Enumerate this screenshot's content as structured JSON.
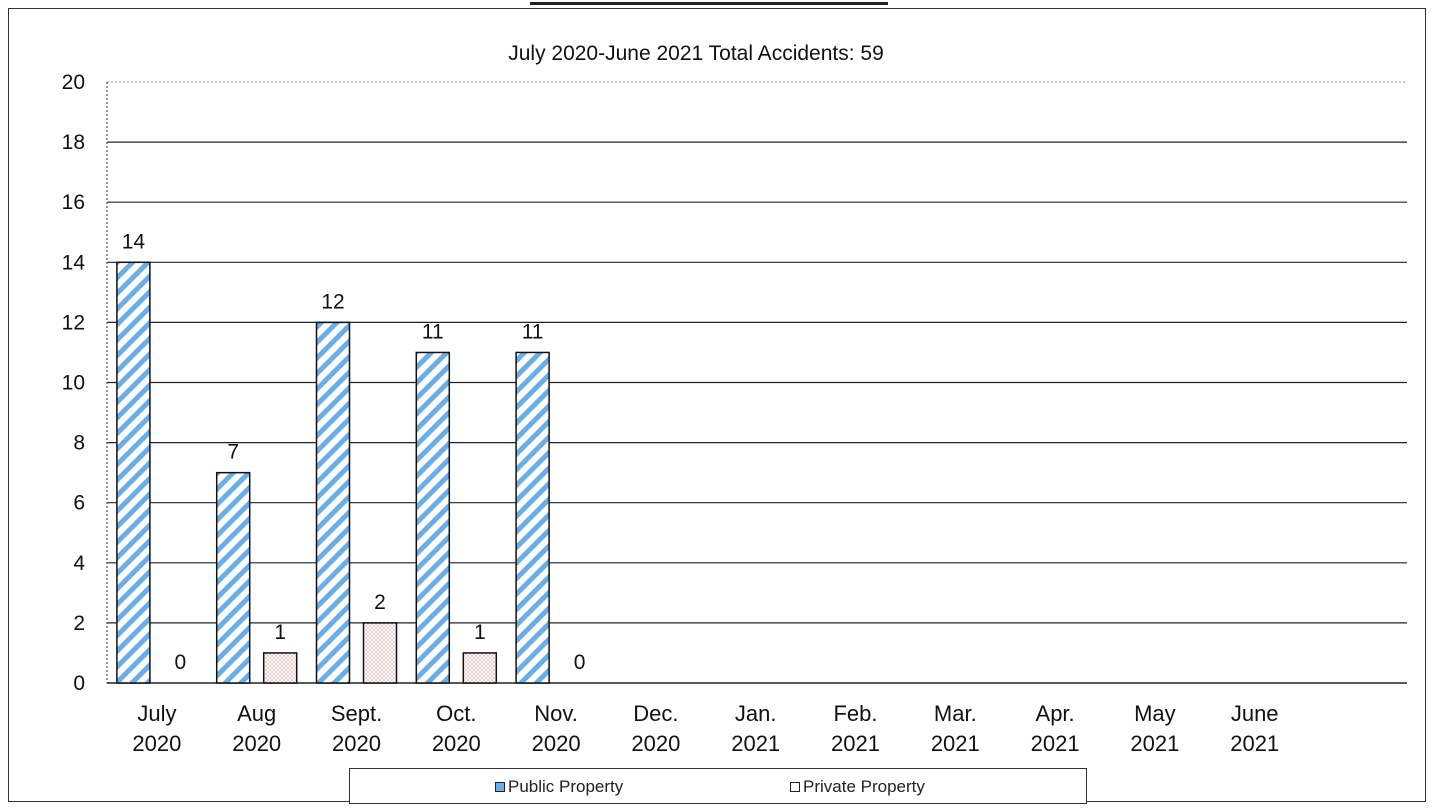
{
  "chart_data": {
    "type": "bar",
    "title": "July 2020-June 2021 Total Accidents: 59",
    "categories": [
      [
        "July",
        "2020"
      ],
      [
        "Aug",
        "2020"
      ],
      [
        "Sept.",
        "2020"
      ],
      [
        "Oct.",
        "2020"
      ],
      [
        "Nov.",
        "2020"
      ],
      [
        "Dec.",
        "2020"
      ],
      [
        "Jan.",
        "2021"
      ],
      [
        "Feb.",
        "2021"
      ],
      [
        "Mar.",
        "2021"
      ],
      [
        "Apr.",
        "2021"
      ],
      [
        "May",
        "2021"
      ],
      [
        "June",
        "2021"
      ]
    ],
    "series": [
      {
        "name": "Public Property",
        "values": [
          14,
          7,
          12,
          11,
          11,
          null,
          null,
          null,
          null,
          null,
          null,
          null
        ],
        "color": "#6aaee8",
        "pattern": "diagonal-stripes"
      },
      {
        "name": "Private Property",
        "values": [
          0,
          1,
          2,
          1,
          0,
          null,
          null,
          null,
          null,
          null,
          null,
          null
        ],
        "color": "#f2c8c8",
        "pattern": "dots"
      }
    ],
    "ylim": [
      0,
      20
    ],
    "yticks": [
      0,
      2,
      4,
      6,
      8,
      10,
      12,
      14,
      16,
      18,
      20
    ],
    "grid": true,
    "legend": "bottom"
  },
  "legend": {
    "public_label": "Public Property",
    "private_label": "Private Property"
  }
}
